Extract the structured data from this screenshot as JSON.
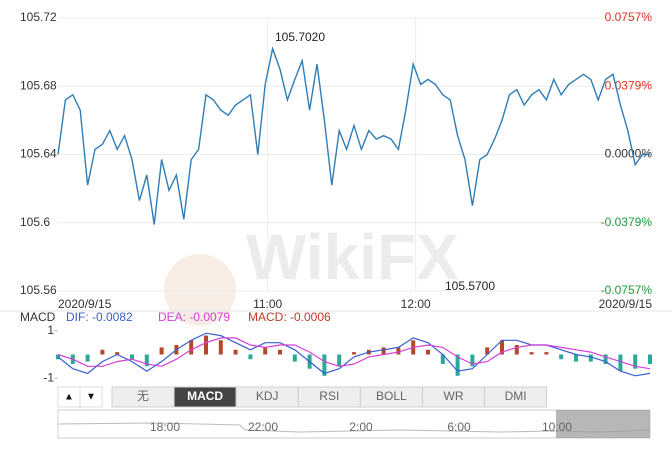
{
  "watermark": "WikiFX",
  "chart_data": [
    {
      "type": "line",
      "color": "#2f7db5",
      "grid": true,
      "xlim": [
        575,
        815
      ],
      "xticks": [
        {
          "value": 575,
          "label": "2020/9/15"
        },
        {
          "value": 660,
          "label": "11:00"
        },
        {
          "value": 720,
          "label": "12:00"
        },
        {
          "value": 815,
          "label": "2020/9/15"
        }
      ],
      "ylim": [
        105.56,
        105.72
      ],
      "yticks": [
        105.56,
        105.6,
        105.64,
        105.68,
        105.72
      ],
      "y2lim": [
        -0.0757,
        0.0757
      ],
      "y2ticks": [
        {
          "value": -0.0757,
          "label": "-0.0757%"
        },
        {
          "value": -0.0379,
          "label": "-0.0379%"
        },
        {
          "value": 0,
          "label": "0.0000%"
        },
        {
          "value": 0.0379,
          "label": "0.0379%"
        },
        {
          "value": 0.0757,
          "label": "0.0757%"
        }
      ],
      "annotations": [
        "105.7020",
        "105.5700"
      ],
      "x": [
        575,
        578,
        581,
        584,
        587,
        590,
        593,
        596,
        599,
        602,
        605,
        608,
        611,
        614,
        617,
        620,
        623,
        626,
        629,
        632,
        635,
        638,
        641,
        644,
        647,
        650,
        653,
        656,
        659,
        662,
        665,
        668,
        671,
        674,
        677,
        680,
        683,
        686,
        689,
        692,
        695,
        698,
        701,
        704,
        707,
        710,
        713,
        716,
        719,
        722,
        725,
        728,
        731,
        734,
        737,
        740,
        743,
        746,
        749,
        752,
        755,
        758,
        761,
        764,
        767,
        770,
        773,
        776,
        779,
        782,
        785,
        788,
        791,
        794,
        797,
        800,
        803,
        806,
        809,
        812,
        815
      ],
      "values": [
        105.64,
        105.672,
        105.675,
        105.666,
        105.622,
        105.643,
        105.646,
        105.654,
        105.643,
        105.651,
        105.637,
        105.613,
        105.628,
        105.599,
        105.637,
        105.619,
        105.628,
        105.602,
        105.637,
        105.643,
        105.675,
        105.672,
        105.666,
        105.663,
        105.669,
        105.672,
        105.675,
        105.64,
        105.681,
        105.702,
        105.69,
        105.672,
        105.684,
        105.695,
        105.666,
        105.693,
        105.66,
        105.622,
        105.654,
        105.643,
        105.657,
        105.643,
        105.654,
        105.649,
        105.651,
        105.649,
        105.643,
        105.666,
        105.693,
        105.681,
        105.684,
        105.681,
        105.675,
        105.672,
        105.651,
        105.637,
        105.61,
        105.637,
        105.64,
        105.649,
        105.66,
        105.675,
        105.678,
        105.669,
        105.675,
        105.678,
        105.672,
        105.684,
        105.675,
        105.681,
        105.684,
        105.687,
        105.684,
        105.672,
        105.684,
        105.687,
        105.669,
        105.654,
        105.634,
        105.64,
        105.64
      ]
    },
    {
      "type": "macd",
      "title": "MACD",
      "xlim": [
        575,
        815
      ],
      "ylim": [
        -1.5,
        1.5
      ],
      "yticks": [
        1,
        -1
      ],
      "x": [
        575,
        581,
        587,
        593,
        599,
        605,
        611,
        617,
        623,
        629,
        635,
        641,
        647,
        653,
        659,
        665,
        671,
        677,
        683,
        689,
        695,
        701,
        707,
        713,
        719,
        725,
        731,
        737,
        743,
        749,
        755,
        761,
        767,
        773,
        779,
        785,
        791,
        797,
        803,
        809,
        815
      ],
      "series": [
        {
          "name": "DIF: -0.0082",
          "color": "#3a5fd0",
          "values": [
            -0.1,
            -0.6,
            -0.8,
            -0.3,
            0.0,
            -0.3,
            -0.7,
            -0.3,
            0.2,
            0.6,
            0.9,
            0.8,
            0.5,
            0.2,
            0.5,
            0.5,
            0.2,
            -0.3,
            -0.8,
            -0.6,
            -0.1,
            0.1,
            0.2,
            0.3,
            0.7,
            0.5,
            0.0,
            -0.7,
            -0.6,
            0.0,
            0.6,
            0.6,
            0.4,
            0.4,
            0.2,
            0.0,
            -0.1,
            -0.3,
            -0.7,
            -0.9,
            -0.8
          ]
        },
        {
          "name": "DEA: -0.0079",
          "color": "#d63fd6",
          "values": [
            0.0,
            -0.2,
            -0.5,
            -0.5,
            -0.3,
            -0.2,
            -0.4,
            -0.5,
            -0.2,
            0.2,
            0.5,
            0.7,
            0.7,
            0.4,
            0.3,
            0.4,
            0.4,
            0.1,
            -0.3,
            -0.5,
            -0.4,
            -0.1,
            0.0,
            0.1,
            0.3,
            0.4,
            0.3,
            -0.1,
            -0.4,
            -0.3,
            0.1,
            0.3,
            0.4,
            0.4,
            0.3,
            0.2,
            0.1,
            -0.1,
            -0.3,
            -0.5,
            -0.6
          ]
        }
      ],
      "bars": {
        "name": "MACD: -0.0006",
        "color": "#c0392b",
        "up_color": "#b5472a",
        "down_color": "#2aa89a",
        "values": [
          -0.2,
          -0.4,
          -0.3,
          0.2,
          0.1,
          -0.2,
          -0.5,
          0.3,
          0.4,
          0.6,
          0.8,
          0.6,
          0.2,
          -0.2,
          0.3,
          0.2,
          -0.3,
          -0.6,
          -0.9,
          -0.5,
          0.1,
          0.2,
          0.3,
          0.3,
          0.6,
          0.2,
          -0.4,
          -0.9,
          -0.5,
          0.3,
          0.6,
          0.4,
          0.1,
          0.1,
          -0.2,
          -0.3,
          -0.3,
          -0.4,
          -0.7,
          -0.6,
          -0.4
        ]
      }
    }
  ],
  "toolbar": {
    "buttons": [
      "▲",
      "▼"
    ],
    "tabs": [
      "无",
      "MACD",
      "KDJ",
      "RSI",
      "BOLL",
      "WR",
      "DMI"
    ],
    "active": 1
  },
  "navigator": {
    "labels": [
      "18:00",
      "22:00",
      "2:00",
      "6:00",
      "10:00"
    ]
  }
}
